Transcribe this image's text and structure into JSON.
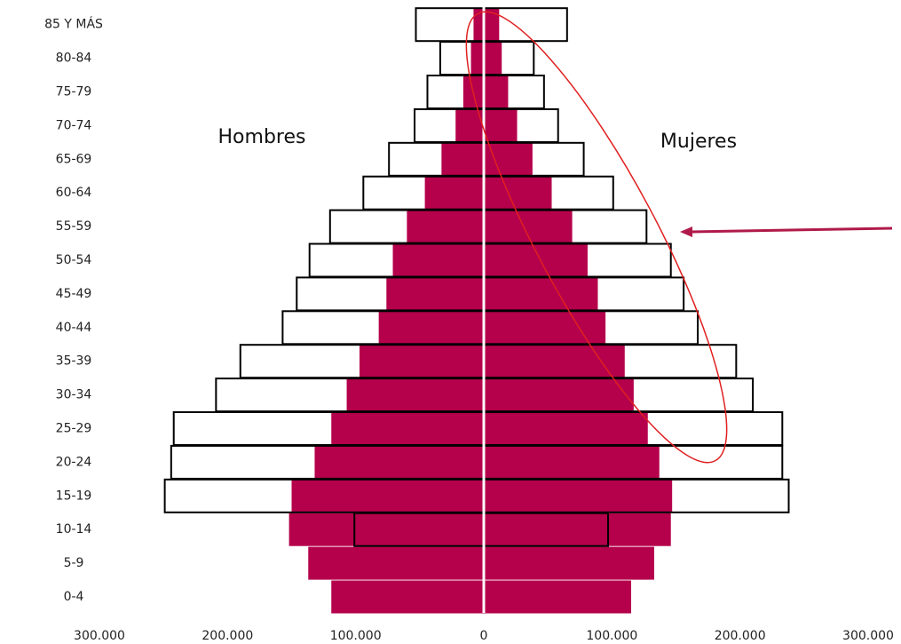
{
  "chart_data": {
    "type": "pyramid",
    "categories": [
      "0-4",
      "5-9",
      "10-14",
      "15-19",
      "20-24",
      "25-29",
      "30-34",
      "35-39",
      "40-44",
      "45-49",
      "50-54",
      "55-59",
      "60-64",
      "65-69",
      "70-74",
      "75-79",
      "80-84",
      "85 Y MÁS"
    ],
    "series": [
      {
        "name": "Hombres",
        "side": "left",
        "color": "#b5004b",
        "outline_color": "#000000",
        "values": [
          119000,
          137000,
          152000,
          150000,
          132000,
          119000,
          107000,
          97000,
          82000,
          76000,
          71000,
          60000,
          46000,
          33000,
          22000,
          16000,
          10000,
          8000
        ],
        "outline": [
          null,
          null,
          101000,
          249000,
          244000,
          242000,
          209000,
          190000,
          157000,
          146000,
          136000,
          120000,
          94000,
          74000,
          54000,
          44000,
          34000,
          53000
        ]
      },
      {
        "name": "Mujeres",
        "side": "right",
        "color": "#b5004b",
        "outline_color": "#000000",
        "values": [
          115000,
          133000,
          146000,
          147000,
          137000,
          128000,
          117000,
          110000,
          95000,
          89000,
          81000,
          69000,
          53000,
          38000,
          26000,
          19000,
          14000,
          12000
        ],
        "outline": [
          null,
          null,
          97000,
          238000,
          233000,
          233000,
          210000,
          197000,
          167000,
          156000,
          146000,
          127000,
          101000,
          78000,
          58000,
          47000,
          39000,
          65000
        ]
      }
    ],
    "xlim": [
      -300000,
      300000
    ],
    "xticks": [
      {
        "value": -300000,
        "label": "300.000"
      },
      {
        "value": -200000,
        "label": "200.000"
      },
      {
        "value": -100000,
        "label": "100.000"
      },
      0,
      {
        "value": 100000,
        "label": "100.000"
      },
      {
        "value": 200000,
        "label": "200.000"
      },
      {
        "value": 300000,
        "label": "300.000"
      }
    ]
  }
}
